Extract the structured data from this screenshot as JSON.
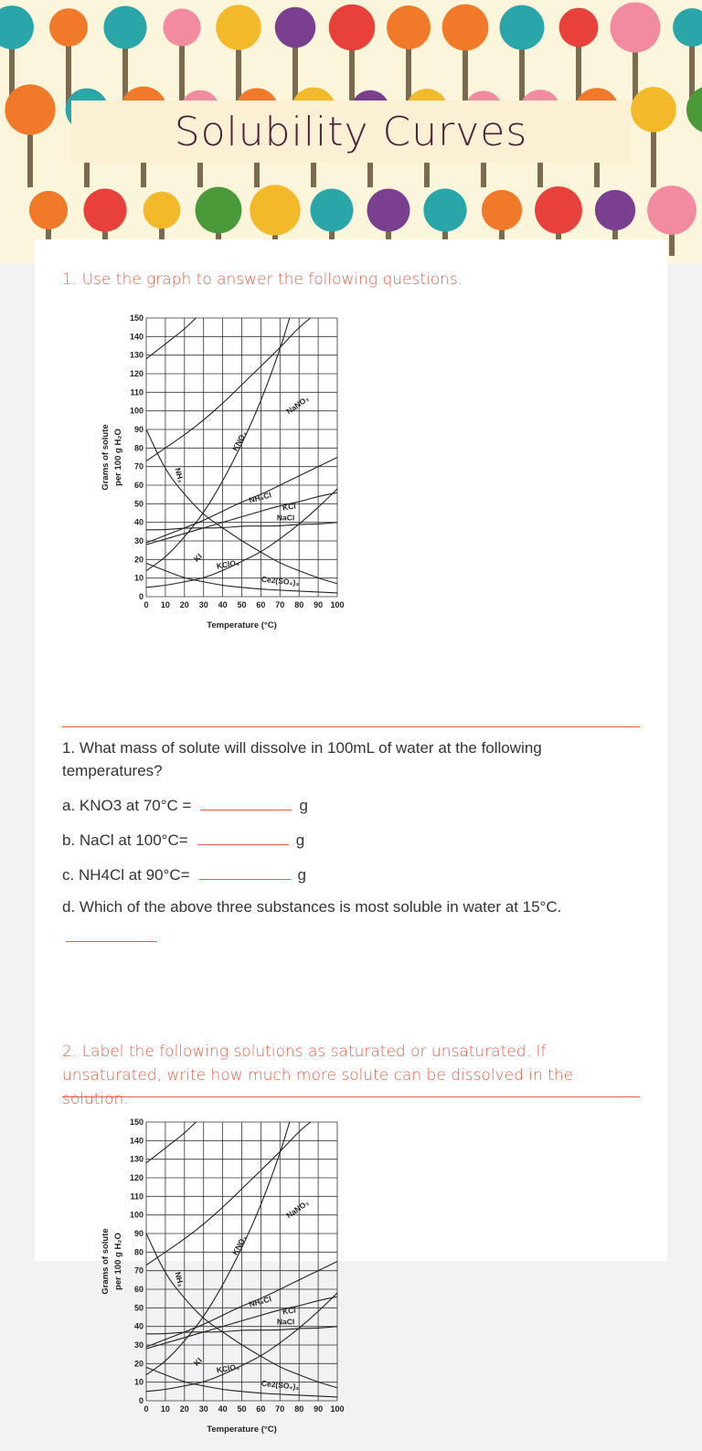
{
  "header": {
    "title": "Solubility Curves"
  },
  "section1": {
    "heading": "1.  Use the graph to answer the following questions.",
    "question_intro": "1. What mass of solute will dissolve in 100mL of water at the following temperatures?",
    "items": [
      {
        "label": "a. KNO3 at 70°C =",
        "unit": "g",
        "value": ""
      },
      {
        "label": "b. NaCl at 100°C=",
        "unit": "g",
        "value": ""
      },
      {
        "label": "c. NH4Cl at 90°C=",
        "unit": "g",
        "value": ""
      }
    ],
    "question_d": "d. Which of the above three substances is most soluble in water at 15°C.",
    "answer_d": ""
  },
  "section2": {
    "heading": "2.    Label the following solutions as saturated or unsaturated.  If unsaturated, write how much more solute can be dissolved in the solution."
  },
  "colors": {
    "accent": "#ee5a45",
    "title": "#4a2238"
  },
  "chart_data": {
    "type": "line",
    "xlabel": "Temperature (°C)",
    "ylabel": "Grams of solute per 100 g H2O",
    "xlim": [
      0,
      100
    ],
    "ylim": [
      0,
      150
    ],
    "xticks": [
      0,
      10,
      20,
      30,
      40,
      50,
      60,
      70,
      80,
      90,
      100
    ],
    "yticks": [
      0,
      10,
      20,
      30,
      40,
      50,
      60,
      70,
      80,
      90,
      100,
      110,
      120,
      130,
      140,
      150
    ],
    "grid": true,
    "series": [
      {
        "name": "KI",
        "x": [
          0,
          10,
          20,
          26
        ],
        "y": [
          128,
          136,
          144,
          150
        ]
      },
      {
        "name": "NaNO3",
        "x": [
          0,
          10,
          20,
          30,
          40,
          50,
          60,
          70,
          80,
          86
        ],
        "y": [
          73,
          80,
          87,
          95,
          104,
          114,
          124,
          134,
          145,
          150
        ]
      },
      {
        "name": "KNO3",
        "x": [
          0,
          10,
          20,
          30,
          40,
          50,
          60,
          70,
          75
        ],
        "y": [
          14,
          21,
          32,
          45,
          62,
          82,
          105,
          133,
          150
        ]
      },
      {
        "name": "NH3",
        "x": [
          0,
          10,
          20,
          30,
          40,
          50,
          60,
          70,
          80,
          90,
          100
        ],
        "y": [
          90,
          68,
          55,
          44,
          37,
          30,
          24,
          18,
          14,
          10,
          7
        ]
      },
      {
        "name": "NH4Cl",
        "x": [
          0,
          10,
          20,
          30,
          40,
          50,
          60,
          70,
          80,
          90,
          100
        ],
        "y": [
          29,
          33,
          37,
          41,
          46,
          51,
          55,
          60,
          65,
          70,
          75
        ]
      },
      {
        "name": "KCl",
        "x": [
          0,
          10,
          20,
          30,
          40,
          50,
          60,
          70,
          80,
          90,
          100
        ],
        "y": [
          28,
          31,
          34,
          37,
          40,
          43,
          46,
          49,
          51,
          54,
          56
        ]
      },
      {
        "name": "NaCl",
        "x": [
          0,
          10,
          20,
          30,
          40,
          50,
          60,
          70,
          80,
          90,
          100
        ],
        "y": [
          36,
          36,
          37,
          37,
          37,
          38,
          38,
          38,
          39,
          39,
          40
        ]
      },
      {
        "name": "KClO3",
        "x": [
          0,
          10,
          20,
          30,
          40,
          50,
          60,
          70,
          80,
          90,
          100
        ],
        "y": [
          5,
          6,
          8,
          10,
          14,
          19,
          24,
          31,
          39,
          48,
          58
        ]
      },
      {
        "name": "Ce2(SO4)3",
        "x": [
          0,
          10,
          20,
          30,
          40,
          50,
          60,
          70,
          80,
          90,
          100
        ],
        "y": [
          18,
          14,
          10,
          8,
          6,
          5,
          4,
          3.5,
          3,
          2.5,
          2
        ]
      }
    ]
  }
}
